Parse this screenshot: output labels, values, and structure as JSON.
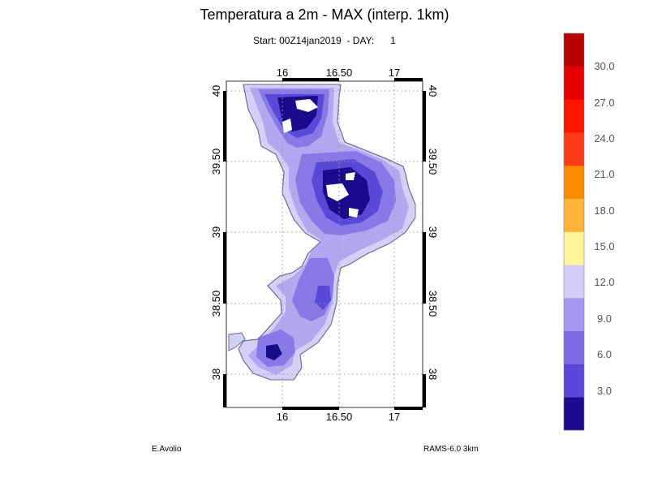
{
  "title": "Temperatura a 2m - MAX (interp. 1km)",
  "subtitle": "Start: 00Z14jan2019  - DAY:      1",
  "footer": {
    "author": "E.Avolio",
    "model": "RAMS-6.0 3km"
  },
  "map": {
    "lon_ticks": [
      "16",
      "16.50",
      "17"
    ],
    "lat_ticks": [
      "40",
      "39.50",
      "39",
      "38.50",
      "38"
    ],
    "colors": {
      "sea": "#ffffff",
      "coast": "#6a6a9a",
      "grid": "#9a9a9a",
      "frame": "#000000",
      "field_low": "#1a0a8c",
      "field_6": "#5b48d8",
      "field_9": "#8878e8",
      "field_12": "#b1a8f0",
      "field_15": "#d4d0f7"
    }
  },
  "colorbar": {
    "labels": [
      "3.0",
      "6.0",
      "9.0",
      "12.0",
      "15.0",
      "18.0",
      "21.0",
      "24.0",
      "27.0",
      "30.0"
    ],
    "colors": [
      "#1c0a8e",
      "#5a46d8",
      "#7b69e6",
      "#a497ee",
      "#d2cdf6",
      "#fff59a",
      "#fcb43a",
      "#fb8c00",
      "#ff3b1a",
      "#ff1400",
      "#e60000",
      "#b70000"
    ]
  }
}
